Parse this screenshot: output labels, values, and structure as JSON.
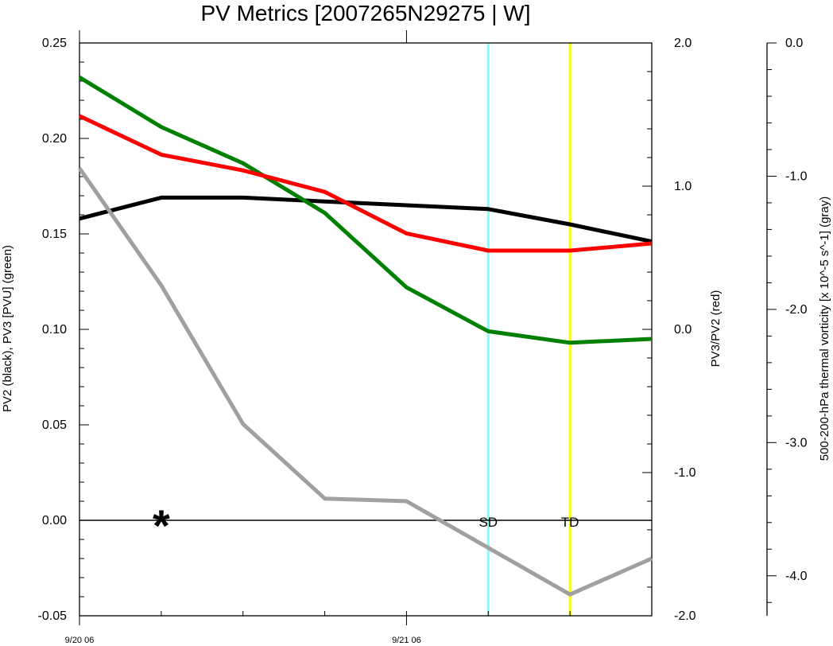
{
  "chart_data": {
    "type": "line",
    "title": "PV Metrics [2007265N29275 | W]",
    "left_axis": {
      "label": "PV2 (black), PV3 [PVU] (green)",
      "ylim": [
        -0.05,
        0.25
      ],
      "ticks": [
        "0.25",
        "0.20",
        "0.15",
        "0.10",
        "0.05",
        "0.00",
        "-0.05"
      ]
    },
    "right_axis": {
      "label": "PV3/PV2 (red)",
      "ylim": [
        -2.0,
        2.0
      ],
      "ticks": [
        "2.0",
        "1.0",
        "0.0",
        "-1.0",
        "-2.0"
      ]
    },
    "far_right_axis": {
      "label": "500-200-hPa thermal vorticity [x 10^-5 s^-1] (gray)",
      "ylim": [
        -4.3,
        0.0
      ],
      "ticks": [
        "0.0",
        "-1.0",
        "-2.0",
        "-3.0",
        "-4.0"
      ]
    },
    "x": [
      0,
      1,
      2,
      3,
      4,
      5,
      6,
      7
    ],
    "xlim": [
      0,
      7
    ],
    "x_ticks": [
      {
        "x": 0,
        "label": "9/20 06"
      },
      {
        "x": 4,
        "label": "9/21 06"
      }
    ],
    "series": [
      {
        "color": "#000000",
        "axis": "left",
        "values": [
          0.158,
          0.169,
          0.169,
          0.167,
          0.165,
          0.163,
          0.155,
          0.146
        ]
      },
      {
        "color": "#008000",
        "axis": "left",
        "values": [
          0.232,
          0.206,
          0.187,
          0.161,
          0.122,
          0.099,
          0.093,
          0.095
        ]
      },
      {
        "color": "#ff0000",
        "axis": "right",
        "values": [
          1.49,
          1.22,
          1.11,
          0.96,
          0.67,
          0.55,
          0.55,
          0.6
        ]
      },
      {
        "color": "#a0a0a0",
        "axis": "far_right",
        "values": [
          -0.94,
          -1.82,
          -2.86,
          -3.42,
          -3.44,
          -3.79,
          -4.14,
          -3.87
        ]
      }
    ],
    "vertical_markers": [
      {
        "x": 5,
        "label": "SD",
        "color": "#80ffff"
      },
      {
        "x": 6,
        "label": "TD",
        "color": "#ffff00"
      }
    ],
    "star_marker": {
      "x": 1,
      "y": 0.0,
      "symbol": "*"
    }
  }
}
